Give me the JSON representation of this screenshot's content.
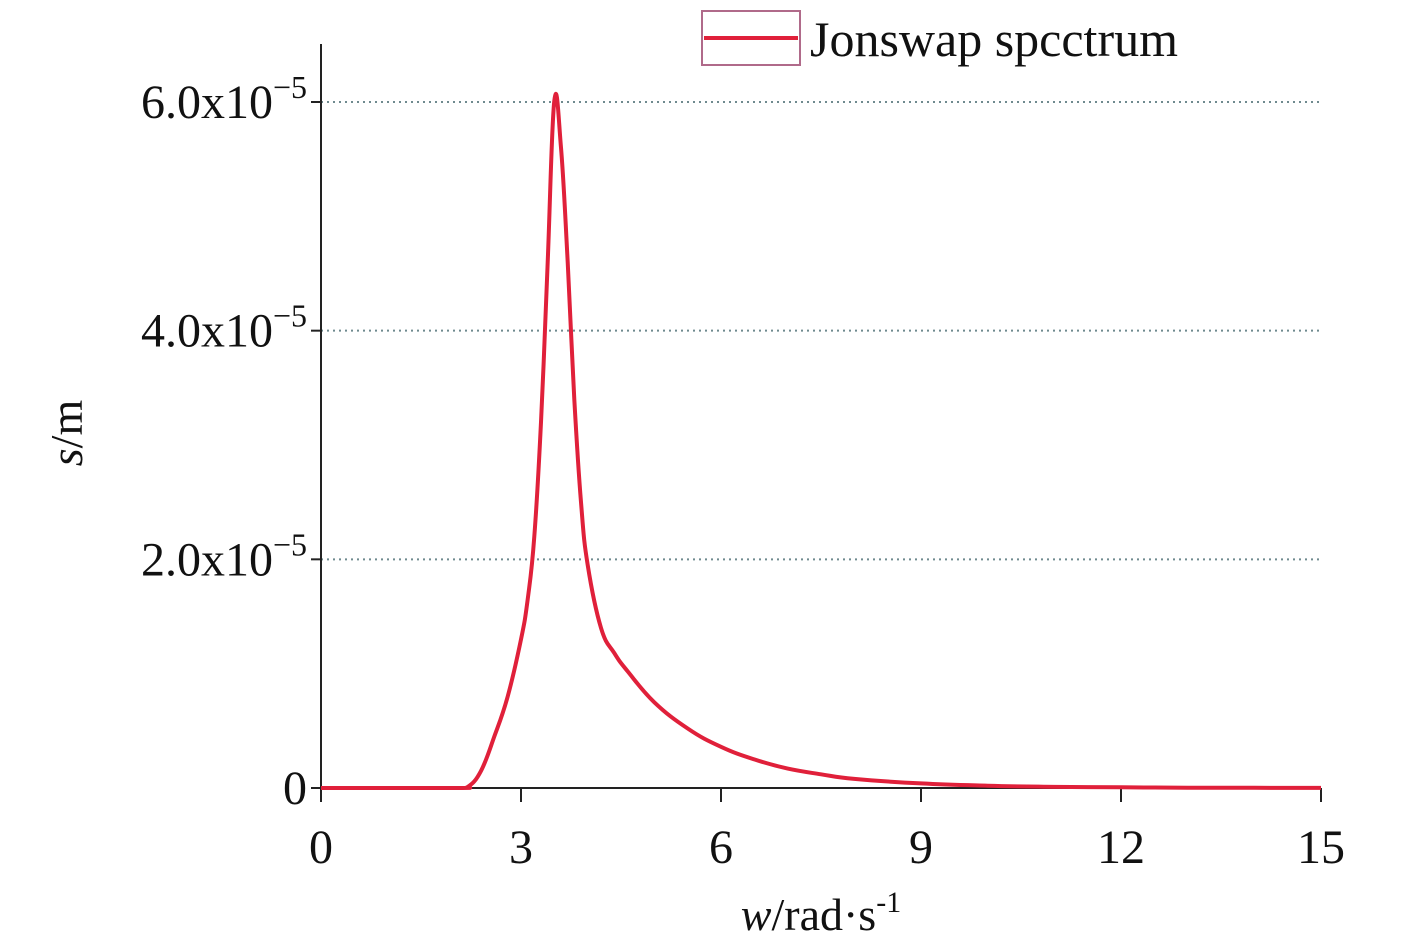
{
  "chart_data": {
    "type": "line",
    "legend": {
      "label": "Jonswap spcctrum",
      "position": "top-right"
    },
    "xlabel": {
      "var": "w",
      "unit": "/rad·s",
      "exp": "-1"
    },
    "ylabel": {
      "var": "s",
      "unit": "/m"
    },
    "xlim": [
      0,
      15
    ],
    "ylim": [
      0,
      6e-05
    ],
    "xticks": [
      {
        "value": 0,
        "label": "0"
      },
      {
        "value": 3,
        "label": "3"
      },
      {
        "value": 6,
        "label": "6"
      },
      {
        "value": 9,
        "label": "9"
      },
      {
        "value": 12,
        "label": "12"
      },
      {
        "value": 15,
        "label": "15"
      }
    ],
    "yticks": [
      {
        "value": 0,
        "mant": "0",
        "exp": ""
      },
      {
        "value": 2e-05,
        "mant": "2.0x10",
        "exp": "−5"
      },
      {
        "value": 4e-05,
        "mant": "4.0x10",
        "exp": "−5"
      },
      {
        "value": 6e-05,
        "mant": "6.0x10",
        "exp": "−5"
      }
    ],
    "grid": {
      "horizontal": true,
      "style": "dotted"
    },
    "series": [
      {
        "name": "Jonswap spcctrum",
        "color": "#e0203a",
        "x": [
          0,
          2.0,
          2.2,
          2.4,
          2.6,
          2.8,
          3.0,
          3.1,
          3.2,
          3.3,
          3.4,
          3.5,
          3.6,
          3.7,
          3.8,
          3.9,
          4.0,
          4.2,
          4.4,
          4.6,
          5.0,
          5.5,
          6.0,
          6.5,
          7.0,
          7.5,
          8.0,
          9.0,
          10.0,
          11.0,
          12.0,
          13.0,
          14.0,
          15.0
        ],
        "y": [
          0,
          0,
          1e-07,
          1.5e-06,
          4.5e-06,
          8e-06,
          1.3e-05,
          1.65e-05,
          2.2e-05,
          3.2e-05,
          4.6e-05,
          6.01e-05,
          5.6e-05,
          4.6e-05,
          3.4e-05,
          2.5e-05,
          1.95e-05,
          1.4e-05,
          1.18e-05,
          1.02e-05,
          7.5e-06,
          5.2e-06,
          3.6e-06,
          2.5e-06,
          1.7e-06,
          1.2e-06,
          8e-07,
          4e-07,
          2e-07,
          1e-07,
          6e-08,
          3e-08,
          2e-08,
          1e-08
        ]
      }
    ]
  }
}
